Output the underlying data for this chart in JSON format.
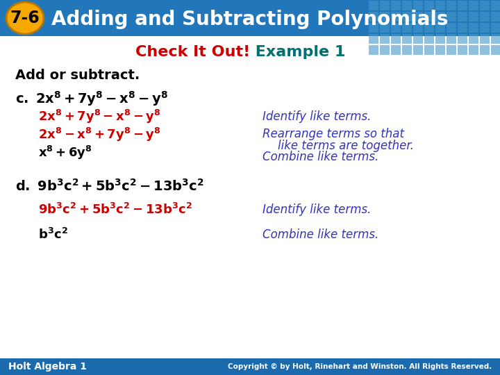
{
  "bg_color": "#ffffff",
  "header_bg_left": "#1a6aad",
  "header_bg_right": "#3a8fcc",
  "header_text": "Adding and Subtracting Polynomials",
  "header_text_color": "#ffffff",
  "badge_bg": "#F5A800",
  "badge_text": "7-6",
  "badge_text_color": "#000000",
  "subtitle_red": "Check It Out!",
  "subtitle_red_color": "#CC0000",
  "subtitle_teal": " Example 1",
  "subtitle_teal_color": "#007070",
  "add_subtract_label": "Add or subtract.",
  "footer_left": "Holt Algebra 1",
  "footer_right": "Copyright © by Holt, Rinehart and Winston. All Rights Reserved.",
  "footer_bg": "#1a6aad",
  "footer_text_color": "#ffffff",
  "grid_color": "#5aaee0",
  "red_color": "#CC0000",
  "blue_color": "#2222AA",
  "annot_color": "#3333BB"
}
